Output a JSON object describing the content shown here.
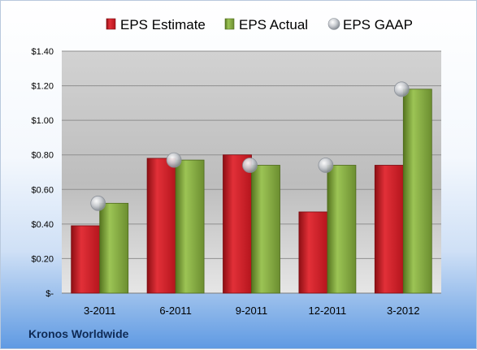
{
  "company": "Kronos Worldwide",
  "chart_data": {
    "type": "bar",
    "categories": [
      "3-2011",
      "6-2011",
      "9-2011",
      "12-2011",
      "3-2012"
    ],
    "series": [
      {
        "name": "EPS Estimate",
        "kind": "bar",
        "color": "#d11f2a",
        "values": [
          0.39,
          0.78,
          0.8,
          0.47,
          0.74
        ]
      },
      {
        "name": "EPS Actual",
        "kind": "bar",
        "color": "#7ea23c",
        "values": [
          0.52,
          0.77,
          0.74,
          0.74,
          1.18
        ]
      },
      {
        "name": "EPS GAAP",
        "kind": "marker",
        "color": "#b8bcc2",
        "values": [
          0.52,
          0.77,
          0.74,
          0.74,
          1.18
        ]
      }
    ],
    "ylim": [
      0,
      1.4
    ],
    "yticks": [
      0,
      0.2,
      0.4,
      0.6,
      0.8,
      1.0,
      1.2,
      1.4
    ],
    "ytick_labels": [
      "$-",
      "$0.20",
      "$0.40",
      "$0.60",
      "$0.80",
      "$1.00",
      "$1.20",
      "$1.40"
    ],
    "grid": true,
    "legend_position": "top"
  }
}
